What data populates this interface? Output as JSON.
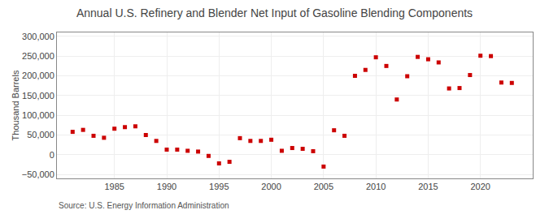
{
  "chart_data": {
    "type": "scatter",
    "title": "Annual U.S. Refinery and Blender Net Input of Gasoline Blending Components",
    "ylabel": "Thousand Barrels",
    "annotations": [
      "Source: U.S. Energy Information Administration"
    ],
    "x": [
      1981,
      1982,
      1983,
      1984,
      1985,
      1986,
      1987,
      1988,
      1989,
      1990,
      1991,
      1992,
      1993,
      1994,
      1995,
      1996,
      1997,
      1998,
      1999,
      2000,
      2001,
      2002,
      2003,
      2004,
      2005,
      2006,
      2007,
      2008,
      2009,
      2010,
      2011,
      2012,
      2013,
      2014,
      2015,
      2016,
      2017,
      2018,
      2019,
      2020,
      2021,
      2022,
      2023
    ],
    "values": [
      58000,
      63000,
      48000,
      43000,
      66000,
      70000,
      72000,
      50000,
      35000,
      13000,
      13000,
      10000,
      8000,
      -3000,
      -22000,
      -18000,
      42000,
      35000,
      35000,
      38000,
      10000,
      17000,
      15000,
      9000,
      -30000,
      62000,
      48000,
      200000,
      215000,
      247000,
      225000,
      140000,
      199000,
      248000,
      242000,
      234000,
      168000,
      169000,
      202000,
      251000,
      250000,
      183000,
      182000
    ],
    "color": "#cc0000",
    "marker": "square",
    "xlim": [
      1979.5,
      2025
    ],
    "xticks": [
      1985,
      1990,
      1995,
      2000,
      2005,
      2010,
      2015,
      2020
    ],
    "ylim": [
      -60000,
      310000
    ],
    "yticks": [
      {
        "value": -50000,
        "label": "−50,000"
      },
      0,
      {
        "value": 50000,
        "label": "50,000"
      },
      {
        "value": 100000,
        "label": "100,000"
      },
      {
        "value": 150000,
        "label": "150,000"
      },
      {
        "value": 200000,
        "label": "200,000"
      },
      {
        "value": 250000,
        "label": "250,000"
      },
      {
        "value": 300000,
        "label": "300,000"
      }
    ],
    "grid": true
  }
}
